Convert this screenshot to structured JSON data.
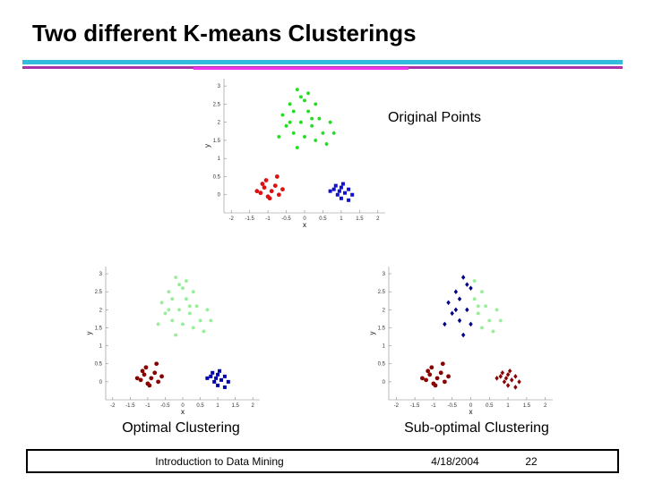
{
  "title": "Two different K-means Clusterings",
  "footer": {
    "course": "Introduction to Data Mining",
    "date": "4/18/2004",
    "page": 22
  },
  "chart_data": [
    {
      "type": "scatter",
      "label": "Original Points",
      "x_label": "x",
      "y_label": "y",
      "xlim": [
        -2.2,
        2.2
      ],
      "ylim": [
        -0.5,
        3.2
      ],
      "xticks": [
        -2,
        -1.5,
        -1,
        -0.5,
        0,
        0.5,
        1,
        1.5,
        2
      ],
      "yticks": [
        0,
        0.5,
        1,
        1.5,
        2,
        2.5,
        3
      ],
      "series": [
        {
          "color": "#22dd22",
          "marker": "star",
          "x": [
            -0.2,
            0.1,
            -0.4,
            0,
            0.3,
            -0.6,
            -0.3,
            0.1,
            0.4,
            0.7,
            -0.5,
            -0.1,
            0.2,
            0.5,
            -0.7,
            -0.3,
            0,
            0.3,
            -0.2,
            0.6,
            0.8,
            -0.1,
            0.2,
            -0.4
          ],
          "values": [
            2.9,
            2.8,
            2.5,
            2.6,
            2.5,
            2.2,
            2.3,
            2.3,
            2.1,
            2,
            1.9,
            2,
            1.9,
            1.7,
            1.6,
            1.7,
            1.6,
            1.5,
            1.3,
            1.4,
            1.7,
            2.7,
            2.1,
            2
          ]
        },
        {
          "color": "#dd1111",
          "marker": "dot",
          "x": [
            -1.1,
            -0.9,
            -1.2,
            -1,
            -0.8,
            -1.05,
            -0.7,
            -1.3,
            -0.95,
            -0.75,
            -0.6,
            -1.15
          ],
          "values": [
            0.2,
            0.1,
            0.05,
            -0.05,
            0.25,
            0.4,
            0,
            0.1,
            -0.1,
            0.5,
            0.15,
            0.3
          ]
        },
        {
          "color": "#1111cc",
          "marker": "square",
          "x": [
            0.8,
            1,
            1.1,
            0.9,
            1.2,
            0.7,
            1,
            1.3,
            0.85,
            1.05,
            1.2,
            0.95
          ],
          "values": [
            0.15,
            0.2,
            0.05,
            0,
            0.15,
            0.1,
            -0.1,
            0,
            0.25,
            0.3,
            -0.15,
            0.1
          ]
        }
      ]
    },
    {
      "type": "scatter",
      "label": "Optimal Clustering",
      "x_label": "x",
      "y_label": "y",
      "xlim": [
        -2.2,
        2.2
      ],
      "ylim": [
        -0.5,
        3.2
      ],
      "xticks": [
        -2,
        -1.5,
        -1,
        -0.5,
        0,
        0.5,
        1,
        1.5,
        2
      ],
      "yticks": [
        0,
        0.5,
        1,
        1.5,
        2,
        2.5,
        3
      ],
      "series": [
        {
          "color": "#99ee99",
          "marker": "star",
          "x": [
            -0.2,
            0.1,
            -0.4,
            0,
            0.3,
            -0.6,
            -0.3,
            0.1,
            0.4,
            0.7,
            -0.5,
            -0.1,
            0.2,
            0.5,
            -0.7,
            -0.3,
            0,
            0.3,
            -0.2,
            0.6,
            0.8,
            -0.1,
            0.2,
            -0.4
          ],
          "values": [
            2.9,
            2.8,
            2.5,
            2.6,
            2.5,
            2.2,
            2.3,
            2.3,
            2.1,
            2,
            1.9,
            2,
            1.9,
            1.7,
            1.6,
            1.7,
            1.6,
            1.5,
            1.3,
            1.4,
            1.7,
            2.7,
            2.1,
            2
          ]
        },
        {
          "color": "#880000",
          "marker": "dot",
          "x": [
            -1.1,
            -0.9,
            -1.2,
            -1,
            -0.8,
            -1.05,
            -0.7,
            -1.3,
            -0.95,
            -0.75,
            -0.6,
            -1.15
          ],
          "values": [
            0.2,
            0.1,
            0.05,
            -0.05,
            0.25,
            0.4,
            0,
            0.1,
            -0.1,
            0.5,
            0.15,
            0.3
          ]
        },
        {
          "color": "#0000aa",
          "marker": "square",
          "x": [
            0.8,
            1,
            1.1,
            0.9,
            1.2,
            0.7,
            1,
            1.3,
            0.85,
            1.05,
            1.2,
            0.95
          ],
          "values": [
            0.15,
            0.2,
            0.05,
            0,
            0.15,
            0.1,
            -0.1,
            0,
            0.25,
            0.3,
            -0.15,
            0.1
          ]
        }
      ]
    },
    {
      "type": "scatter",
      "label": "Sub-optimal Clustering",
      "x_label": "x",
      "y_label": "y",
      "xlim": [
        -2.2,
        2.2
      ],
      "ylim": [
        -0.5,
        3.2
      ],
      "xticks": [
        -2,
        -1.5,
        -1,
        -0.5,
        0,
        0.5,
        1,
        1.5,
        2
      ],
      "yticks": [
        0,
        0.5,
        1,
        1.5,
        2,
        2.5,
        3
      ],
      "series": [
        {
          "color": "#000088",
          "marker": "diamond",
          "x": [
            -0.2,
            -0.4,
            -0.6,
            -0.3,
            -0.5,
            -0.1,
            -0.7,
            -0.3,
            -0.2,
            -0.1,
            -0.4,
            0,
            0
          ],
          "values": [
            2.9,
            2.5,
            2.2,
            2.3,
            1.9,
            2,
            1.6,
            1.7,
            1.3,
            2.7,
            2,
            2.6,
            1.6
          ]
        },
        {
          "color": "#99ee99",
          "marker": "star",
          "x": [
            0.1,
            0.3,
            0.1,
            0.4,
            0.7,
            0.2,
            0.5,
            0.3,
            0.6,
            0.8,
            0.2
          ],
          "values": [
            2.8,
            2.5,
            2.3,
            2.1,
            2,
            1.9,
            1.7,
            1.5,
            1.4,
            1.7,
            2.1
          ]
        },
        {
          "color": "#880000",
          "marker": "dot",
          "x": [
            -1.1,
            -0.9,
            -1.2,
            -1,
            -0.8,
            -1.05,
            -0.7,
            -1.3,
            -0.95,
            -0.75,
            -0.6,
            -1.15
          ],
          "values": [
            0.2,
            0.1,
            0.05,
            -0.05,
            0.25,
            0.4,
            0,
            0.1,
            -0.1,
            0.5,
            0.15,
            0.3
          ]
        },
        {
          "color": "#880000",
          "marker": "diamond",
          "x": [
            0.8,
            1,
            1.1,
            0.9,
            1.2,
            0.7,
            1,
            1.3,
            0.85,
            1.05,
            1.2,
            0.95
          ],
          "values": [
            0.15,
            0.2,
            0.05,
            0,
            0.15,
            0.1,
            -0.1,
            0,
            0.25,
            0.3,
            -0.15,
            0.1
          ]
        }
      ]
    }
  ]
}
